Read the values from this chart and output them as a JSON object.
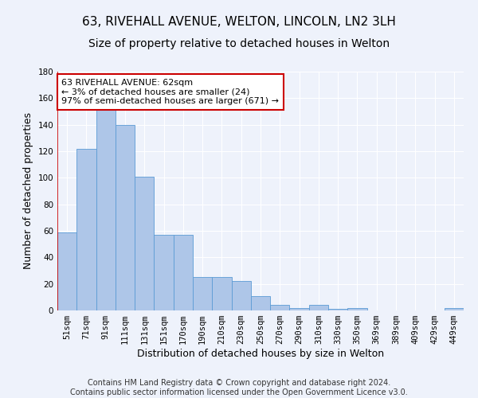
{
  "title_line1": "63, RIVEHALL AVENUE, WELTON, LINCOLN, LN2 3LH",
  "title_line2": "Size of property relative to detached houses in Welton",
  "xlabel": "Distribution of detached houses by size in Welton",
  "ylabel": "Number of detached properties",
  "categories": [
    "51sqm",
    "71sqm",
    "91sqm",
    "111sqm",
    "131sqm",
    "151sqm",
    "170sqm",
    "190sqm",
    "210sqm",
    "230sqm",
    "250sqm",
    "270sqm",
    "290sqm",
    "310sqm",
    "330sqm",
    "350sqm",
    "369sqm",
    "389sqm",
    "409sqm",
    "429sqm",
    "449sqm"
  ],
  "values": [
    59,
    122,
    151,
    140,
    101,
    57,
    57,
    25,
    25,
    22,
    11,
    4,
    2,
    4,
    1,
    2,
    0,
    0,
    0,
    0,
    2
  ],
  "bar_color": "#aec6e8",
  "bar_edge_color": "#5b9bd5",
  "annotation_title": "63 RIVEHALL AVENUE: 62sqm",
  "annotation_line2": "← 3% of detached houses are smaller (24)",
  "annotation_line3": "97% of semi-detached houses are larger (671) →",
  "annotation_box_color": "#ffffff",
  "annotation_box_edge_color": "#cc0000",
  "vline_color": "#cc0000",
  "ylim": [
    0,
    180
  ],
  "yticks": [
    0,
    20,
    40,
    60,
    80,
    100,
    120,
    140,
    160,
    180
  ],
  "footer_line1": "Contains HM Land Registry data © Crown copyright and database right 2024.",
  "footer_line2": "Contains public sector information licensed under the Open Government Licence v3.0.",
  "background_color": "#eef2fb",
  "grid_color": "#ffffff",
  "title_fontsize": 11,
  "subtitle_fontsize": 10,
  "axis_label_fontsize": 9,
  "tick_fontsize": 7.5,
  "footer_fontsize": 7
}
